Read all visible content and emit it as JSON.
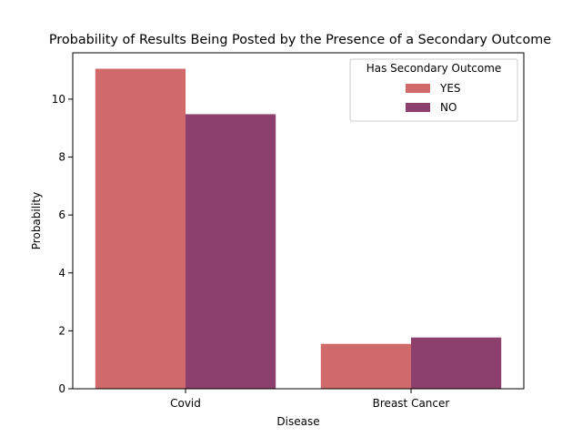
{
  "chart_data": {
    "type": "bar",
    "title": "Probability of Results Being Posted by the Presence of a Secondary Outcome",
    "xlabel": "Disease",
    "ylabel": "Probability",
    "categories": [
      "Covid",
      "Breast Cancer"
    ],
    "series": [
      {
        "name": "YES",
        "values": [
          11.05,
          1.55
        ],
        "color": "#d0696a"
      },
      {
        "name": "NO",
        "values": [
          9.48,
          1.77
        ],
        "color": "#8d406d"
      }
    ],
    "ylim": [
      0,
      11.6
    ],
    "yticks": [
      0,
      2,
      4,
      6,
      8,
      10
    ],
    "grid": false,
    "legend": {
      "title": "Has Secondary Outcome",
      "position": "top-right"
    }
  }
}
